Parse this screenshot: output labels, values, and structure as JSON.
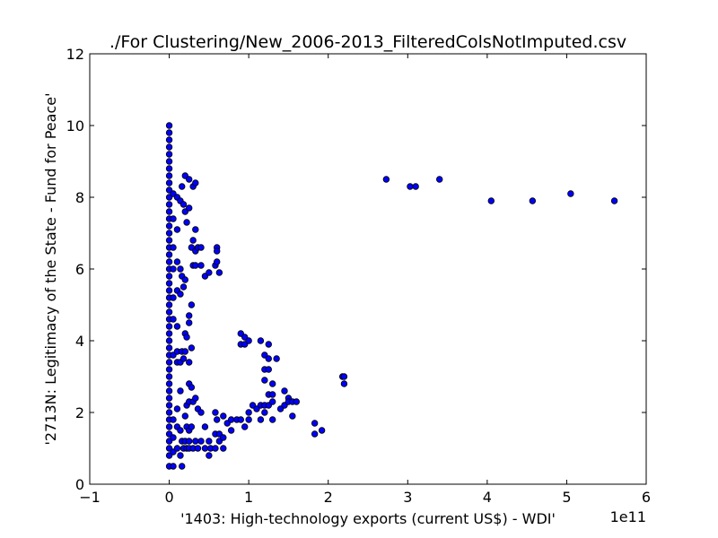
{
  "chart_data": {
    "type": "scatter",
    "title": "./For Clustering/New_2006-2013_FilteredColsNotImputed.csv",
    "xlabel": "'1403: High-technology exports  (current US$) - WDI'",
    "ylabel": "'2713N: Legitimacy of the State - Fund for Peace'",
    "x_offset_label": "1e11",
    "x_scale": 100000000000.0,
    "xlim": [
      -100000000000.0,
      600000000000.0
    ],
    "ylim": [
      0,
      12
    ],
    "x_ticks": [
      -100000000000.0,
      0,
      100000000000.0,
      200000000000.0,
      300000000000.0,
      400000000000.0,
      500000000000.0,
      600000000000.0
    ],
    "x_tick_labels": [
      "−1",
      "0",
      "1",
      "2",
      "3",
      "4",
      "5",
      "6"
    ],
    "y_ticks": [
      0,
      2,
      4,
      6,
      8,
      10,
      12
    ],
    "y_tick_labels": [
      "0",
      "2",
      "4",
      "6",
      "8",
      "10",
      "12"
    ],
    "grid": false,
    "marker_color": "#0000ff",
    "marker_edge": "#000000",
    "points": [
      [
        0,
        10.0
      ],
      [
        0,
        9.8
      ],
      [
        0,
        9.6
      ],
      [
        0,
        9.4
      ],
      [
        0,
        9.2
      ],
      [
        0,
        9.0
      ],
      [
        0,
        8.8
      ],
      [
        0,
        8.6
      ],
      [
        0,
        8.4
      ],
      [
        0,
        8.2
      ],
      [
        0,
        8.0
      ],
      [
        0,
        7.8
      ],
      [
        0,
        7.6
      ],
      [
        0,
        7.4
      ],
      [
        0,
        7.2
      ],
      [
        0,
        7.0
      ],
      [
        0,
        6.8
      ],
      [
        0,
        6.6
      ],
      [
        0,
        6.4
      ],
      [
        0,
        6.2
      ],
      [
        0,
        6.0
      ],
      [
        0,
        5.8
      ],
      [
        0,
        5.6
      ],
      [
        0,
        5.4
      ],
      [
        0,
        5.2
      ],
      [
        0,
        5.0
      ],
      [
        0,
        4.8
      ],
      [
        0,
        4.6
      ],
      [
        0,
        4.4
      ],
      [
        0,
        4.2
      ],
      [
        0,
        4.0
      ],
      [
        0,
        3.8
      ],
      [
        0,
        3.6
      ],
      [
        0,
        3.4
      ],
      [
        0,
        3.2
      ],
      [
        0,
        3.0
      ],
      [
        0,
        2.8
      ],
      [
        0,
        2.6
      ],
      [
        0,
        2.4
      ],
      [
        0,
        2.2
      ],
      [
        0,
        2.0
      ],
      [
        0,
        1.8
      ],
      [
        0,
        1.6
      ],
      [
        0,
        1.4
      ],
      [
        0,
        1.2
      ],
      [
        0,
        1.0
      ],
      [
        0,
        0.8
      ],
      [
        0,
        0.5
      ],
      [
        5000000000.0,
        8.1
      ],
      [
        5000000000.0,
        7.4
      ],
      [
        5000000000.0,
        6.6
      ],
      [
        5000000000.0,
        6.0
      ],
      [
        5000000000.0,
        5.2
      ],
      [
        5000000000.0,
        4.6
      ],
      [
        5000000000.0,
        3.6
      ],
      [
        5000000000.0,
        1.8
      ],
      [
        5000000000.0,
        1.3
      ],
      [
        5000000000.0,
        0.9
      ],
      [
        5000000000.0,
        0.5
      ],
      [
        10000000000.0,
        8.0
      ],
      [
        10000000000.0,
        7.1
      ],
      [
        10000000000.0,
        6.2
      ],
      [
        10000000000.0,
        5.4
      ],
      [
        10000000000.0,
        4.4
      ],
      [
        10000000000.0,
        3.7
      ],
      [
        10000000000.0,
        3.4
      ],
      [
        10000000000.0,
        2.1
      ],
      [
        10000000000.0,
        1.6
      ],
      [
        10000000000.0,
        1.0
      ],
      [
        14000000000.0,
        7.9
      ],
      [
        14000000000.0,
        6.0
      ],
      [
        14000000000.0,
        5.3
      ],
      [
        14000000000.0,
        3.4
      ],
      [
        14000000000.0,
        2.6
      ],
      [
        14000000000.0,
        1.5
      ],
      [
        14000000000.0,
        0.8
      ],
      [
        16000000000.0,
        8.3
      ],
      [
        16000000000.0,
        5.8
      ],
      [
        16000000000.0,
        3.7
      ],
      [
        16000000000.0,
        1.2
      ],
      [
        16000000000.0,
        0.5
      ],
      [
        18000000000.0,
        7.8
      ],
      [
        18000000000.0,
        5.5
      ],
      [
        18000000000.0,
        3.5
      ],
      [
        18000000000.0,
        1.0
      ],
      [
        20000000000.0,
        8.6
      ],
      [
        20000000000.0,
        7.6
      ],
      [
        20000000000.0,
        5.7
      ],
      [
        20000000000.0,
        4.2
      ],
      [
        20000000000.0,
        3.7
      ],
      [
        20000000000.0,
        1.9
      ],
      [
        20000000000.0,
        1.2
      ],
      [
        22000000000.0,
        7.3
      ],
      [
        22000000000.0,
        4.1
      ],
      [
        22000000000.0,
        2.2
      ],
      [
        22000000000.0,
        1.6
      ],
      [
        22000000000.0,
        1.0
      ],
      [
        25000000000.0,
        8.5
      ],
      [
        25000000000.0,
        7.7
      ],
      [
        25000000000.0,
        4.7
      ],
      [
        25000000000.0,
        4.5
      ],
      [
        25000000000.0,
        3.4
      ],
      [
        25000000000.0,
        2.8
      ],
      [
        25000000000.0,
        2.3
      ],
      [
        25000000000.0,
        1.5
      ],
      [
        25000000000.0,
        1.2
      ],
      [
        25000000000.0,
        1.0
      ],
      [
        28000000000.0,
        6.6
      ],
      [
        28000000000.0,
        5.0
      ],
      [
        28000000000.0,
        3.8
      ],
      [
        28000000000.0,
        2.7
      ],
      [
        28000000000.0,
        1.6
      ],
      [
        30000000000.0,
        8.3
      ],
      [
        30000000000.0,
        6.8
      ],
      [
        30000000000.0,
        6.1
      ],
      [
        30000000000.0,
        2.3
      ],
      [
        30000000000.0,
        1.0
      ],
      [
        33000000000.0,
        8.4
      ],
      [
        33000000000.0,
        7.1
      ],
      [
        33000000000.0,
        6.5
      ],
      [
        33000000000.0,
        6.1
      ],
      [
        33000000000.0,
        2.4
      ],
      [
        33000000000.0,
        1.2
      ],
      [
        36000000000.0,
        6.6
      ],
      [
        36000000000.0,
        2.1
      ],
      [
        36000000000.0,
        1.0
      ],
      [
        40000000000.0,
        6.6
      ],
      [
        40000000000.0,
        6.1
      ],
      [
        40000000000.0,
        2.0
      ],
      [
        40000000000.0,
        1.2
      ],
      [
        45000000000.0,
        5.8
      ],
      [
        45000000000.0,
        1.6
      ],
      [
        45000000000.0,
        1.0
      ],
      [
        50000000000.0,
        5.9
      ],
      [
        50000000000.0,
        1.2
      ],
      [
        50000000000.0,
        0.8
      ],
      [
        52000000000.0,
        1.0
      ],
      [
        58000000000.0,
        6.1
      ],
      [
        58000000000.0,
        2.0
      ],
      [
        58000000000.0,
        1.4
      ],
      [
        58000000000.0,
        1.0
      ],
      [
        60000000000.0,
        6.6
      ],
      [
        60000000000.0,
        6.5
      ],
      [
        60000000000.0,
        6.2
      ],
      [
        60000000000.0,
        1.8
      ],
      [
        63000000000.0,
        5.9
      ],
      [
        63000000000.0,
        1.4
      ],
      [
        63000000000.0,
        1.2
      ],
      [
        68000000000.0,
        1.9
      ],
      [
        68000000000.0,
        1.3
      ],
      [
        68000000000.0,
        1.0
      ],
      [
        73000000000.0,
        1.7
      ],
      [
        78000000000.0,
        1.8
      ],
      [
        78000000000.0,
        1.5
      ],
      [
        85000000000.0,
        1.8
      ],
      [
        90000000000.0,
        4.2
      ],
      [
        90000000000.0,
        3.9
      ],
      [
        90000000000.0,
        1.8
      ],
      [
        95000000000.0,
        4.1
      ],
      [
        95000000000.0,
        3.9
      ],
      [
        95000000000.0,
        1.6
      ],
      [
        100000000000.0,
        4.0
      ],
      [
        100000000000.0,
        2.0
      ],
      [
        100000000000.0,
        1.8
      ],
      [
        105000000000.0,
        2.2
      ],
      [
        110000000000.0,
        2.1
      ],
      [
        115000000000.0,
        4.0
      ],
      [
        115000000000.0,
        2.2
      ],
      [
        115000000000.0,
        1.8
      ],
      [
        120000000000.0,
        3.6
      ],
      [
        120000000000.0,
        3.2
      ],
      [
        120000000000.0,
        2.9
      ],
      [
        120000000000.0,
        2.2
      ],
      [
        120000000000.0,
        2.0
      ],
      [
        125000000000.0,
        3.9
      ],
      [
        125000000000.0,
        3.5
      ],
      [
        125000000000.0,
        3.2
      ],
      [
        125000000000.0,
        2.5
      ],
      [
        125000000000.0,
        2.2
      ],
      [
        130000000000.0,
        2.8
      ],
      [
        130000000000.0,
        2.5
      ],
      [
        130000000000.0,
        2.3
      ],
      [
        130000000000.0,
        1.8
      ],
      [
        135000000000.0,
        3.5
      ],
      [
        140000000000.0,
        2.1
      ],
      [
        145000000000.0,
        2.6
      ],
      [
        145000000000.0,
        2.2
      ],
      [
        150000000000.0,
        2.4
      ],
      [
        150000000000.0,
        2.3
      ],
      [
        155000000000.0,
        2.3
      ],
      [
        155000000000.0,
        1.9
      ],
      [
        160000000000.0,
        2.3
      ],
      [
        183000000000.0,
        1.7
      ],
      [
        183000000000.0,
        1.4
      ],
      [
        192000000000.0,
        1.5
      ],
      [
        218000000000.0,
        3.0
      ],
      [
        220000000000.0,
        3.0
      ],
      [
        220000000000.0,
        2.8
      ],
      [
        273000000000.0,
        8.5
      ],
      [
        303000000000.0,
        8.3
      ],
      [
        310000000000.0,
        8.3
      ],
      [
        340000000000.0,
        8.5
      ],
      [
        405000000000.0,
        7.9
      ],
      [
        457000000000.0,
        7.9
      ],
      [
        505000000000.0,
        8.1
      ],
      [
        560000000000.0,
        7.9
      ]
    ]
  }
}
